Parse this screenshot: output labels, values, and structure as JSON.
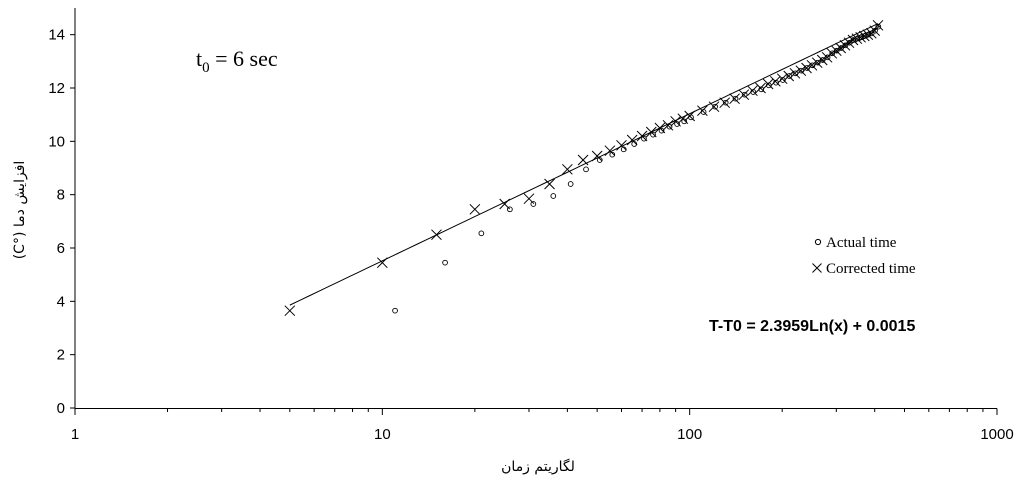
{
  "chart_data": {
    "type": "scatter",
    "title": "",
    "xlabel": "لگاریتم زمان",
    "ylabel": "افزایش دما (°C)",
    "x_scale": "log",
    "xlim": [
      1,
      1000
    ],
    "ylim": [
      0,
      15
    ],
    "x_ticks": [
      "1",
      "10",
      "100",
      "1000"
    ],
    "y_ticks": [
      "0",
      "2",
      "4",
      "6",
      "8",
      "10",
      "12",
      "14"
    ],
    "grid": false,
    "legend_position": "right",
    "annotation": {
      "base": "t",
      "sub": "0",
      "rest": " = 6 sec"
    },
    "equation": "T-T0 = 2.3959Ln(x) + 0.0015",
    "trendline": {
      "slope": 2.3959,
      "intercept": 0.0015,
      "x_range": [
        5,
        410
      ]
    },
    "series": [
      {
        "name": "Actual time",
        "marker": "circle",
        "points": [
          [
            11,
            3.65
          ],
          [
            16,
            5.45
          ],
          [
            21,
            6.55
          ],
          [
            26,
            7.45
          ],
          [
            31,
            7.65
          ],
          [
            36,
            7.95
          ],
          [
            41,
            8.4
          ],
          [
            46,
            8.95
          ],
          [
            51,
            9.3
          ],
          [
            56,
            9.5
          ],
          [
            61,
            9.7
          ],
          [
            66,
            9.9
          ],
          [
            71,
            10.1
          ],
          [
            76,
            10.25
          ],
          [
            81,
            10.4
          ],
          [
            86,
            10.55
          ],
          [
            91,
            10.65
          ],
          [
            96,
            10.75
          ],
          [
            101,
            10.9
          ],
          [
            111,
            11.1
          ],
          [
            121,
            11.3
          ],
          [
            131,
            11.45
          ],
          [
            141,
            11.6
          ],
          [
            151,
            11.75
          ],
          [
            161,
            11.85
          ],
          [
            171,
            11.95
          ],
          [
            181,
            12.1
          ],
          [
            191,
            12.2
          ],
          [
            201,
            12.3
          ],
          [
            211,
            12.45
          ],
          [
            221,
            12.55
          ],
          [
            231,
            12.65
          ],
          [
            241,
            12.75
          ],
          [
            251,
            12.85
          ],
          [
            261,
            12.95
          ],
          [
            271,
            13.05
          ],
          [
            281,
            13.15
          ],
          [
            291,
            13.3
          ],
          [
            301,
            13.4
          ],
          [
            311,
            13.5
          ],
          [
            321,
            13.6
          ],
          [
            331,
            13.7
          ],
          [
            341,
            13.8
          ],
          [
            351,
            13.85
          ],
          [
            361,
            13.9
          ],
          [
            371,
            13.95
          ],
          [
            381,
            14.0
          ],
          [
            391,
            14.05
          ],
          [
            401,
            14.15
          ],
          [
            411,
            14.3
          ]
        ]
      },
      {
        "name": "Corrected time",
        "marker": "x",
        "points": [
          [
            5,
            3.65
          ],
          [
            10,
            5.45
          ],
          [
            15,
            6.5
          ],
          [
            20,
            7.45
          ],
          [
            25,
            7.65
          ],
          [
            30,
            7.85
          ],
          [
            35,
            8.4
          ],
          [
            40,
            8.95
          ],
          [
            45,
            9.3
          ],
          [
            50,
            9.45
          ],
          [
            55,
            9.65
          ],
          [
            60,
            9.85
          ],
          [
            65,
            10.05
          ],
          [
            70,
            10.2
          ],
          [
            75,
            10.35
          ],
          [
            80,
            10.5
          ],
          [
            85,
            10.6
          ],
          [
            90,
            10.75
          ],
          [
            95,
            10.85
          ],
          [
            100,
            10.95
          ],
          [
            110,
            11.15
          ],
          [
            120,
            11.3
          ],
          [
            130,
            11.45
          ],
          [
            140,
            11.6
          ],
          [
            150,
            11.75
          ],
          [
            160,
            11.9
          ],
          [
            170,
            12.0
          ],
          [
            180,
            12.15
          ],
          [
            190,
            12.25
          ],
          [
            200,
            12.35
          ],
          [
            210,
            12.45
          ],
          [
            220,
            12.55
          ],
          [
            230,
            12.65
          ],
          [
            240,
            12.75
          ],
          [
            250,
            12.85
          ],
          [
            260,
            12.95
          ],
          [
            270,
            13.05
          ],
          [
            280,
            13.15
          ],
          [
            290,
            13.3
          ],
          [
            300,
            13.4
          ],
          [
            310,
            13.5
          ],
          [
            320,
            13.6
          ],
          [
            330,
            13.7
          ],
          [
            340,
            13.8
          ],
          [
            350,
            13.85
          ],
          [
            360,
            13.9
          ],
          [
            370,
            13.95
          ],
          [
            380,
            14.0
          ],
          [
            390,
            14.05
          ],
          [
            400,
            14.15
          ],
          [
            410,
            14.35
          ]
        ]
      }
    ]
  }
}
